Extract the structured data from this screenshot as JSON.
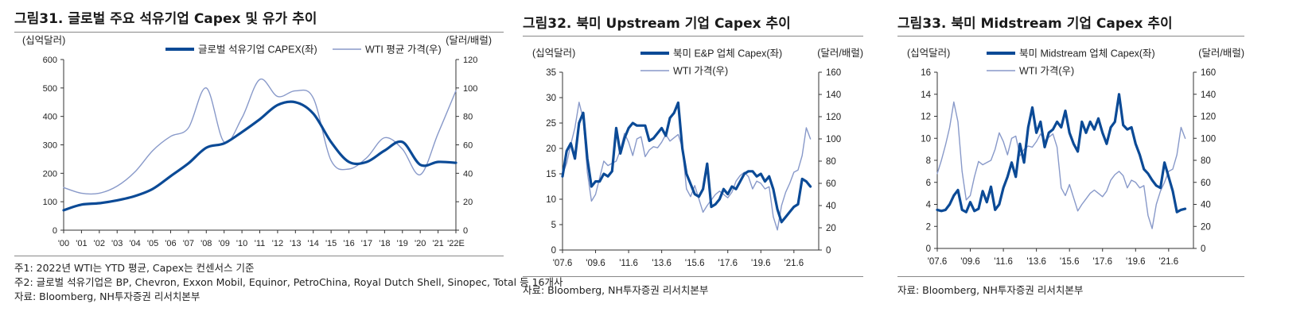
{
  "colors": {
    "dark": "#0b4a96",
    "light": "#8899c9"
  },
  "panels": [
    {
      "title": "그림31. 글로벌 주요 석유기업 Capex 및 유가 추이",
      "notes": [
        "주1: 2022년 WTI는 YTD 평균, Capex는 컨센서스 기준",
        "주2: 글로벌 석유기업은 BP, Chevron, Exxon Mobil, Equinor, PetroChina, Royal Dutch Shell, Sinopec, Total 등 16개사",
        "자료: Bloomberg, NH투자증권 리서치본부"
      ]
    },
    {
      "title": "그림32. 북미 Upstream 기업 Capex 추이",
      "notes": [
        "자료: Bloomberg, NH투자증권 리서치본부"
      ]
    },
    {
      "title": "그림33. 북미 Midstream 기업 Capex 추이",
      "notes": [
        "자료: Bloomberg, NH투자증권 리서치본부"
      ]
    }
  ],
  "chart_data": [
    {
      "type": "line",
      "ylabel_left": "(십억달러)",
      "ylabel_right": "(달러/배럴)",
      "y_left_range": [
        0,
        600
      ],
      "y_left_ticks": [
        0,
        100,
        200,
        300,
        400,
        500,
        600
      ],
      "y_right_range": [
        0,
        120
      ],
      "y_right_ticks": [
        0,
        20,
        40,
        60,
        80,
        100,
        120
      ],
      "x_range": [
        2000,
        2022
      ],
      "x_ticks": [
        {
          "x": 2000,
          "label": "'00"
        },
        {
          "x": 2001,
          "label": "'01"
        },
        {
          "x": 2002,
          "label": "'02"
        },
        {
          "x": 2003,
          "label": "'03"
        },
        {
          "x": 2004,
          "label": "'04"
        },
        {
          "x": 2005,
          "label": "'05"
        },
        {
          "x": 2006,
          "label": "'06"
        },
        {
          "x": 2007,
          "label": "'07"
        },
        {
          "x": 2008,
          "label": "'08"
        },
        {
          "x": 2009,
          "label": "'09"
        },
        {
          "x": 2010,
          "label": "'10"
        },
        {
          "x": 2011,
          "label": "'11"
        },
        {
          "x": 2012,
          "label": "'12"
        },
        {
          "x": 2013,
          "label": "'13"
        },
        {
          "x": 2014,
          "label": "'14"
        },
        {
          "x": 2015,
          "label": "'15"
        },
        {
          "x": 2016,
          "label": "'16"
        },
        {
          "x": 2017,
          "label": "'17"
        },
        {
          "x": 2018,
          "label": "'18"
        },
        {
          "x": 2019,
          "label": "'19"
        },
        {
          "x": 2020,
          "label": "'20"
        },
        {
          "x": 2021,
          "label": "'21"
        },
        {
          "x": 2022,
          "label": "'22E"
        }
      ],
      "legend_placement": "top",
      "series": [
        {
          "name": "글로벌 석유기업 CAPEX(좌)",
          "axis": "left",
          "style": "dark",
          "x": [
            2000,
            2001,
            2002,
            2003,
            2004,
            2005,
            2006,
            2007,
            2008,
            2009,
            2010,
            2011,
            2012,
            2013,
            2014,
            2015,
            2016,
            2017,
            2018,
            2019,
            2020,
            2021,
            2022
          ],
          "y": [
            70,
            90,
            95,
            105,
            120,
            145,
            190,
            235,
            290,
            305,
            345,
            390,
            440,
            450,
            410,
            310,
            240,
            240,
            280,
            310,
            230,
            240,
            237
          ]
        },
        {
          "name": "WTI 평균 가격(우)",
          "axis": "right",
          "style": "light",
          "x": [
            2000,
            2001,
            2002,
            2003,
            2004,
            2005,
            2006,
            2007,
            2008,
            2009,
            2010,
            2011,
            2012,
            2013,
            2014,
            2015,
            2016,
            2017,
            2018,
            2019,
            2020,
            2021,
            2022
          ],
          "y": [
            30,
            26,
            26,
            31,
            41,
            56,
            66,
            72,
            100,
            62,
            79,
            106,
            94,
            98,
            93,
            49,
            43,
            51,
            65,
            57,
            39,
            68,
            98
          ]
        }
      ]
    },
    {
      "type": "line",
      "ylabel_left": "(십억달러)",
      "ylabel_right": "(달러/배럴)",
      "y_left_range": [
        0,
        35
      ],
      "y_left_ticks": [
        0,
        5,
        10,
        15,
        20,
        25,
        30,
        35
      ],
      "y_right_range": [
        0,
        160
      ],
      "y_right_ticks": [
        0,
        20,
        40,
        60,
        80,
        100,
        120,
        140,
        160
      ],
      "x_range": [
        2007.5,
        2023
      ],
      "x_ticks": [
        {
          "x": 2007.5,
          "label": "'07.6"
        },
        {
          "x": 2009.5,
          "label": "'09.6"
        },
        {
          "x": 2011.5,
          "label": "'11.6"
        },
        {
          "x": 2013.5,
          "label": "'13.6"
        },
        {
          "x": 2015.5,
          "label": "'15.6"
        },
        {
          "x": 2017.5,
          "label": "'17.6"
        },
        {
          "x": 2019.5,
          "label": "'19.6"
        },
        {
          "x": 2021.5,
          "label": "'21.6"
        }
      ],
      "legend_placement": "top",
      "series": [
        {
          "name": "북미 E&P 업체 Capex(좌)",
          "axis": "left",
          "style": "dark",
          "x": [
            2007.5,
            2007.75,
            2008.0,
            2008.25,
            2008.5,
            2008.75,
            2009.0,
            2009.25,
            2009.5,
            2009.75,
            2010.0,
            2010.25,
            2010.5,
            2010.75,
            2011.0,
            2011.25,
            2011.5,
            2011.75,
            2012.0,
            2012.25,
            2012.5,
            2012.75,
            2013.0,
            2013.25,
            2013.5,
            2013.75,
            2014.0,
            2014.25,
            2014.5,
            2014.75,
            2015.0,
            2015.25,
            2015.5,
            2015.75,
            2016.0,
            2016.25,
            2016.5,
            2016.75,
            2017.0,
            2017.25,
            2017.5,
            2017.75,
            2018.0,
            2018.25,
            2018.5,
            2018.75,
            2019.0,
            2019.25,
            2019.5,
            2019.75,
            2020.0,
            2020.25,
            2020.5,
            2020.75,
            2021.0,
            2021.25,
            2021.5,
            2021.75,
            2022.0,
            2022.25,
            2022.5
          ],
          "y": [
            14.5,
            19.5,
            21,
            18,
            25,
            27,
            18,
            12.5,
            13.5,
            13.5,
            15,
            14.5,
            15.5,
            24,
            19,
            22,
            24,
            25,
            24.5,
            24.5,
            24.5,
            21.5,
            22,
            23,
            24,
            22.5,
            26,
            27,
            29,
            20,
            15,
            13,
            11,
            10.5,
            12,
            17,
            8.5,
            9,
            10,
            12,
            11,
            12.5,
            12,
            13.5,
            15,
            15.5,
            15.5,
            14.5,
            15,
            13.5,
            14.5,
            12,
            8,
            5.5,
            6.5,
            7.5,
            8.5,
            9,
            14,
            13.5,
            12.5
          ]
        },
        {
          "name": "WTI 가격(우)",
          "axis": "right",
          "style": "light",
          "x": [
            2007.5,
            2007.75,
            2008.0,
            2008.25,
            2008.5,
            2008.75,
            2009.0,
            2009.25,
            2009.5,
            2009.75,
            2010.0,
            2010.25,
            2010.5,
            2010.75,
            2011.0,
            2011.25,
            2011.5,
            2011.75,
            2012.0,
            2012.25,
            2012.5,
            2012.75,
            2013.0,
            2013.25,
            2013.5,
            2013.75,
            2014.0,
            2014.25,
            2014.5,
            2014.75,
            2015.0,
            2015.25,
            2015.5,
            2015.75,
            2016.0,
            2016.25,
            2016.5,
            2016.75,
            2017.0,
            2017.25,
            2017.5,
            2017.75,
            2018.0,
            2018.25,
            2018.5,
            2018.75,
            2019.0,
            2019.25,
            2019.5,
            2019.75,
            2020.0,
            2020.25,
            2020.5,
            2020.75,
            2021.0,
            2021.25,
            2021.5,
            2021.75,
            2022.0,
            2022.25,
            2022.5
          ],
          "y": [
            68,
            78,
            95,
            110,
            133,
            118,
            70,
            44,
            50,
            65,
            80,
            76,
            78,
            80,
            90,
            105,
            97,
            85,
            100,
            102,
            84,
            90,
            93,
            92,
            97,
            104,
            98,
            101,
            104,
            92,
            55,
            48,
            58,
            46,
            34,
            40,
            45,
            50,
            53,
            50,
            47,
            52,
            62,
            67,
            70,
            66,
            55,
            62,
            60,
            55,
            57,
            30,
            18,
            40,
            52,
            60,
            70,
            72,
            85,
            110,
            100
          ]
        }
      ]
    },
    {
      "type": "line",
      "ylabel_left": "(십억달러)",
      "ylabel_right": "(달러/배럴)",
      "y_left_range": [
        0,
        16
      ],
      "y_left_ticks": [
        0,
        2,
        4,
        6,
        8,
        10,
        12,
        14,
        16
      ],
      "y_right_range": [
        0,
        160
      ],
      "y_right_ticks": [
        0,
        20,
        40,
        60,
        80,
        100,
        120,
        140,
        160
      ],
      "x_range": [
        2007.5,
        2023
      ],
      "x_ticks": [
        {
          "x": 2007.5,
          "label": "'07.6"
        },
        {
          "x": 2009.5,
          "label": "'09.6"
        },
        {
          "x": 2011.5,
          "label": "'11.6"
        },
        {
          "x": 2013.5,
          "label": "'13.6"
        },
        {
          "x": 2015.5,
          "label": "'15.6"
        },
        {
          "x": 2017.5,
          "label": "'17.6"
        },
        {
          "x": 2019.5,
          "label": "'19.6"
        },
        {
          "x": 2021.5,
          "label": "'21.6"
        }
      ],
      "legend_placement": "top",
      "series": [
        {
          "name": "북미 Midstream 업체 Capex(좌)",
          "axis": "left",
          "style": "dark",
          "x": [
            2007.5,
            2007.75,
            2008.0,
            2008.25,
            2008.5,
            2008.75,
            2009.0,
            2009.25,
            2009.5,
            2009.75,
            2010.0,
            2010.25,
            2010.5,
            2010.75,
            2011.0,
            2011.25,
            2011.5,
            2011.75,
            2012.0,
            2012.25,
            2012.5,
            2012.75,
            2013.0,
            2013.25,
            2013.5,
            2013.75,
            2014.0,
            2014.25,
            2014.5,
            2014.75,
            2015.0,
            2015.25,
            2015.5,
            2015.75,
            2016.0,
            2016.25,
            2016.5,
            2016.75,
            2017.0,
            2017.25,
            2017.5,
            2017.75,
            2018.0,
            2018.25,
            2018.5,
            2018.75,
            2019.0,
            2019.25,
            2019.5,
            2019.75,
            2020.0,
            2020.25,
            2020.5,
            2020.75,
            2021.0,
            2021.25,
            2021.5,
            2021.75,
            2022.0,
            2022.25,
            2022.5
          ],
          "y": [
            3.5,
            3.4,
            3.5,
            4.0,
            4.8,
            5.3,
            3.5,
            3.3,
            4.2,
            3.4,
            3.6,
            5.2,
            4.2,
            5.6,
            3.5,
            4.0,
            5.5,
            6.5,
            7.8,
            6.5,
            9.5,
            7.8,
            11.0,
            12.8,
            10.5,
            11.5,
            9.2,
            10.5,
            10.8,
            11.5,
            11.0,
            12.5,
            10.5,
            9.5,
            8.8,
            11.5,
            10.5,
            11.5,
            10.8,
            11.8,
            10.5,
            9.5,
            11.0,
            11.5,
            14.0,
            11.2,
            10.8,
            11.0,
            9.5,
            8.5,
            7.2,
            6.8,
            6.2,
            5.7,
            5.5,
            7.8,
            6.5,
            5.2,
            3.3,
            3.5,
            3.6
          ]
        },
        {
          "name": "WTI 가격(우)",
          "axis": "right",
          "style": "light",
          "x": [
            2007.5,
            2007.75,
            2008.0,
            2008.25,
            2008.5,
            2008.75,
            2009.0,
            2009.25,
            2009.5,
            2009.75,
            2010.0,
            2010.25,
            2010.5,
            2010.75,
            2011.0,
            2011.25,
            2011.5,
            2011.75,
            2012.0,
            2012.25,
            2012.5,
            2012.75,
            2013.0,
            2013.25,
            2013.5,
            2013.75,
            2014.0,
            2014.25,
            2014.5,
            2014.75,
            2015.0,
            2015.25,
            2015.5,
            2015.75,
            2016.0,
            2016.25,
            2016.5,
            2016.75,
            2017.0,
            2017.25,
            2017.5,
            2017.75,
            2018.0,
            2018.25,
            2018.5,
            2018.75,
            2019.0,
            2019.25,
            2019.5,
            2019.75,
            2020.0,
            2020.25,
            2020.5,
            2020.75,
            2021.0,
            2021.25,
            2021.5,
            2021.75,
            2022.0,
            2022.25,
            2022.5
          ],
          "y": [
            68,
            80,
            94,
            110,
            133,
            115,
            70,
            44,
            48,
            65,
            79,
            76,
            78,
            80,
            90,
            105,
            97,
            85,
            100,
            102,
            84,
            90,
            93,
            92,
            97,
            104,
            98,
            101,
            104,
            92,
            55,
            48,
            58,
            46,
            34,
            40,
            45,
            50,
            53,
            50,
            47,
            52,
            62,
            67,
            70,
            66,
            55,
            62,
            60,
            55,
            57,
            30,
            18,
            40,
            52,
            60,
            70,
            72,
            85,
            110,
            100
          ]
        }
      ]
    }
  ]
}
